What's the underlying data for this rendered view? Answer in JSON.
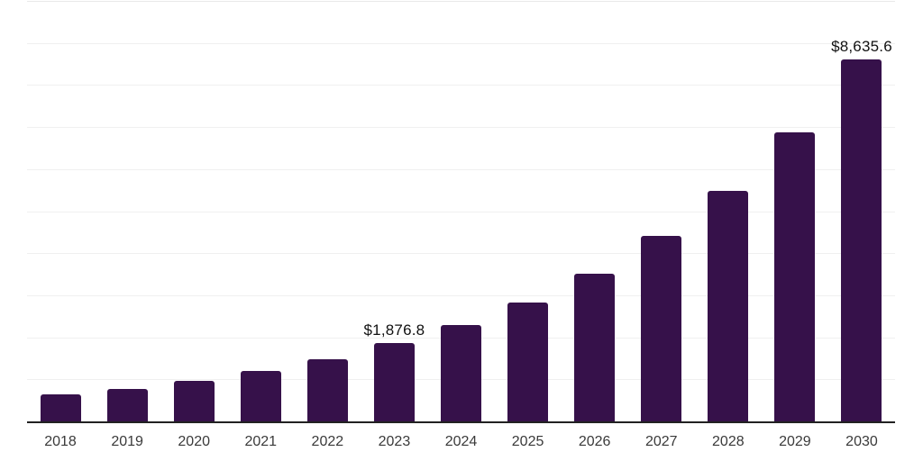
{
  "chart": {
    "background": "#ffffff",
    "bar_color": "#36114a",
    "axis_color": "#222222",
    "gridline_color": "#f0f0f0",
    "top_border_color": "#e9e9e9",
    "value_label_color": "#111111",
    "year_label_color": "#3a3a3a"
  },
  "chart_data": {
    "type": "bar",
    "title": "",
    "xlabel": "",
    "ylabel": "",
    "categories": [
      "2018",
      "2019",
      "2020",
      "2021",
      "2022",
      "2023",
      "2024",
      "2025",
      "2026",
      "2027",
      "2028",
      "2029",
      "2030"
    ],
    "values": [
      655,
      790,
      990,
      1225,
      1505,
      1876.8,
      2320,
      2840,
      3525,
      4430,
      5505,
      6900,
      8635.6
    ],
    "data_labels": [
      "",
      "",
      "",
      "",
      "",
      "$1,876.8",
      "",
      "",
      "",
      "",
      "",
      "",
      "$8,635.6"
    ],
    "ylim": [
      0,
      10000
    ],
    "gridline_step": 1000,
    "grid": true,
    "legend": false,
    "y_axis_labels_visible": false
  }
}
